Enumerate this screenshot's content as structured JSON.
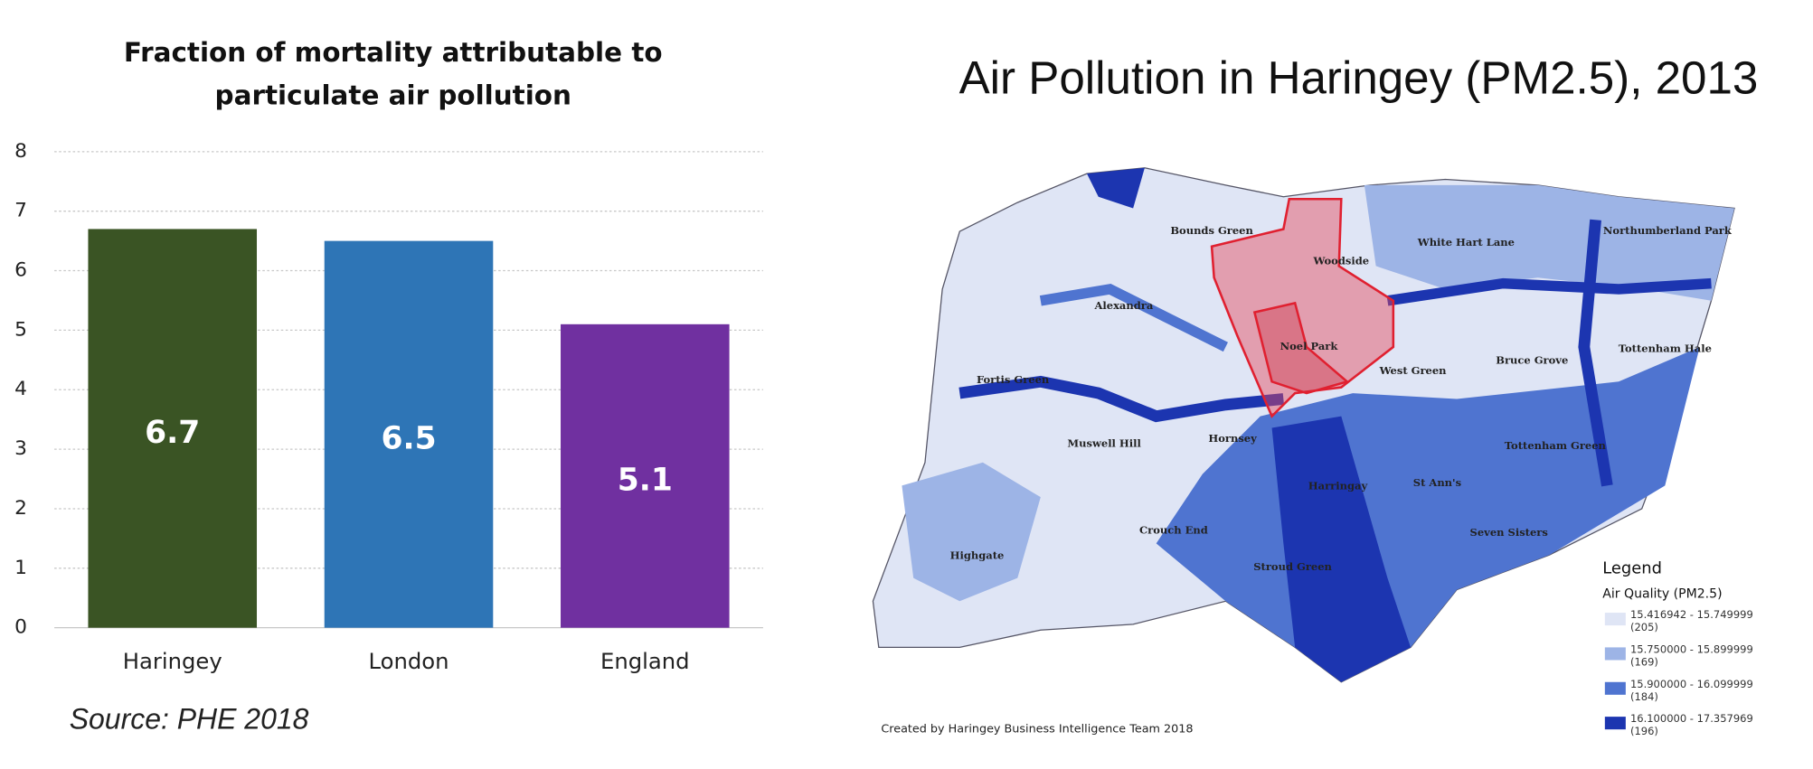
{
  "chart_data": {
    "type": "bar",
    "title": "Fraction of mortality attributable to particulate air pollution",
    "categories": [
      "Haringey",
      "London",
      "England"
    ],
    "values": [
      6.7,
      6.5,
      5.1
    ],
    "colors": [
      "#3a5424",
      "#2e75b6",
      "#7030a0"
    ],
    "ylim": [
      0,
      8
    ],
    "yticks": [
      0,
      1,
      2,
      3,
      4,
      5,
      6,
      7,
      8
    ],
    "grid": true,
    "source": "Source: PHE 2018"
  },
  "map": {
    "title": "Air Pollution in Haringey (PM2.5), 2013",
    "places": [
      "Bounds Green",
      "Woodside",
      "White Hart Lane",
      "Northumberland Park",
      "Alexandra",
      "Fortis Green",
      "Noel Park",
      "West Green",
      "Bruce Grove",
      "Tottenham Hale",
      "Muswell Hill",
      "Hornsey",
      "Tottenham Green",
      "Harringay",
      "St Ann's",
      "Crouch End",
      "Seven Sisters",
      "Highgate",
      "Stroud Green"
    ],
    "legend": {
      "title": "Legend",
      "subtitle": "Air Quality (PM2.5)",
      "items": [
        {
          "range": "15.416942 - 15.749999",
          "count": "(205)",
          "color": "#dfe5f5"
        },
        {
          "range": "15.750000 - 15.899999",
          "count": "(169)",
          "color": "#9db4e6"
        },
        {
          "range": "15.900000 - 16.099999",
          "count": "(184)",
          "color": "#4f74d0"
        },
        {
          "range": "16.100000 - 17.357969",
          "count": "(196)",
          "color": "#1c35b0"
        }
      ]
    },
    "credit": "Created by Haringey Business Intelligence Team 2018"
  }
}
